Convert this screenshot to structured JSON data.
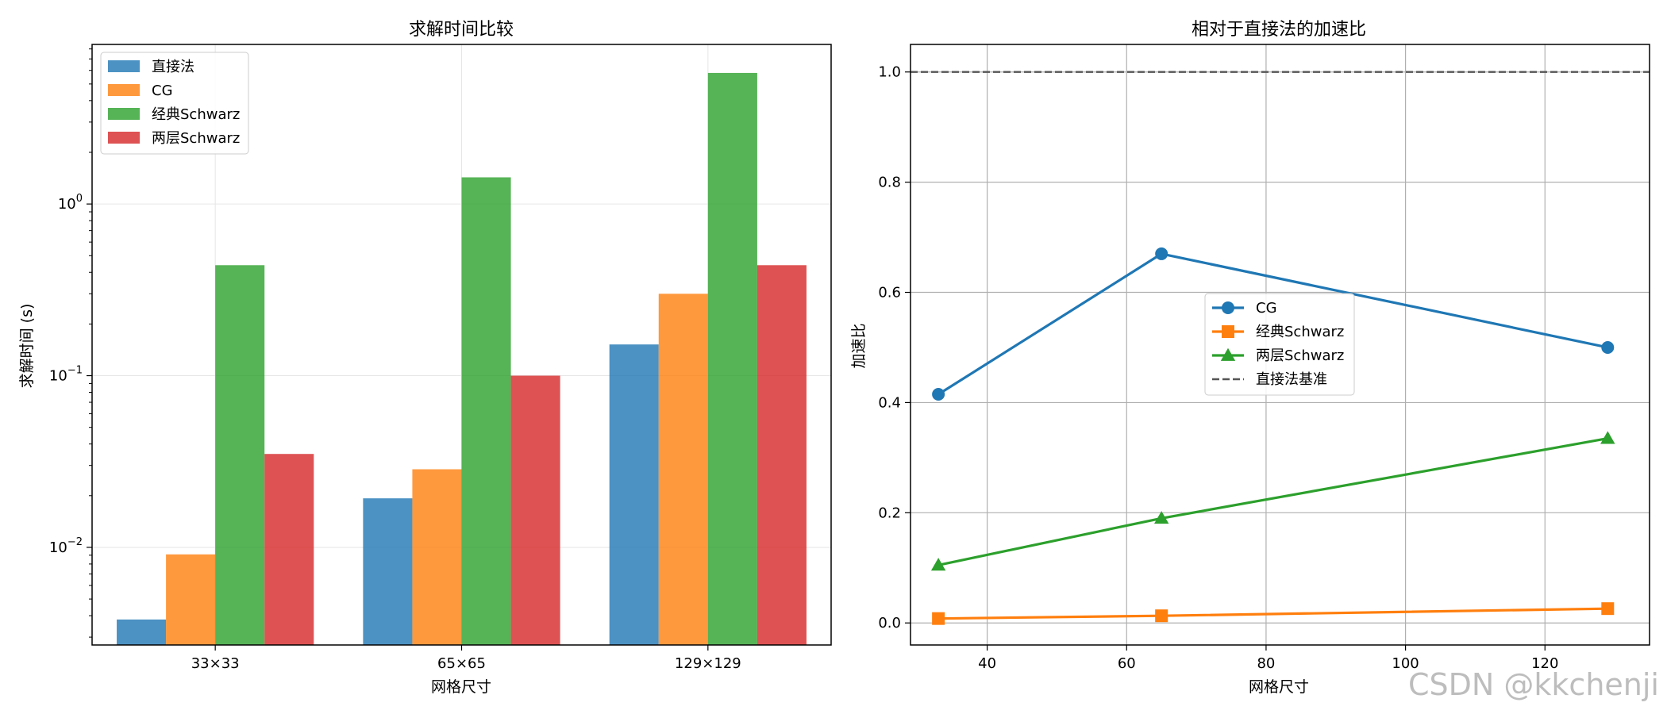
{
  "chart_data": [
    {
      "type": "bar",
      "title": "求解时间比较",
      "xlabel": "网格尺寸",
      "ylabel": "求解时间 (s)",
      "yscale": "log",
      "ylim": [
        0.0027,
        8.5
      ],
      "categories": [
        "33×33",
        "65×65",
        "129×129"
      ],
      "series": [
        {
          "name": "直接法",
          "color": "#1f77b4",
          "values": [
            0.0038,
            0.0193,
            0.152
          ]
        },
        {
          "name": "CG",
          "color": "#ff7f0e",
          "values": [
            0.0091,
            0.0285,
            0.3
          ]
        },
        {
          "name": "经典Schwarz",
          "color": "#2ca02c",
          "values": [
            0.44,
            1.43,
            5.8
          ]
        },
        {
          "name": "两层Schwarz",
          "color": "#d62728",
          "values": [
            0.035,
            0.1,
            0.44
          ]
        }
      ],
      "ytick_labels": [
        "10^-2",
        "10^-1",
        "10^0"
      ],
      "grid": true,
      "legend_position": "upper-left"
    },
    {
      "type": "line",
      "title": "相对于直接法的加速比",
      "xlabel": "网格尺寸",
      "ylabel": "加速比",
      "xlim": [
        29,
        135
      ],
      "ylim": [
        -0.04,
        1.05
      ],
      "xticks": [
        40,
        60,
        80,
        100,
        120
      ],
      "yticks": [
        0.0,
        0.2,
        0.4,
        0.6,
        0.8,
        1.0
      ],
      "x": [
        33,
        65,
        129
      ],
      "series": [
        {
          "name": "CG",
          "color": "#1f77b4",
          "marker": "circle",
          "values": [
            0.415,
            0.67,
            0.5
          ]
        },
        {
          "name": "经典Schwarz",
          "color": "#ff7f0e",
          "marker": "square",
          "values": [
            0.008,
            0.013,
            0.026
          ]
        },
        {
          "name": "两层Schwarz",
          "color": "#2ca02c",
          "marker": "triangle",
          "values": [
            0.105,
            0.19,
            0.335
          ]
        }
      ],
      "reference_line": {
        "name": "直接法基准",
        "value": 1.0,
        "color": "#555555",
        "style": "dashed"
      },
      "grid": true,
      "legend_position": "center"
    }
  ],
  "watermark": "CSDN @kkchenji"
}
